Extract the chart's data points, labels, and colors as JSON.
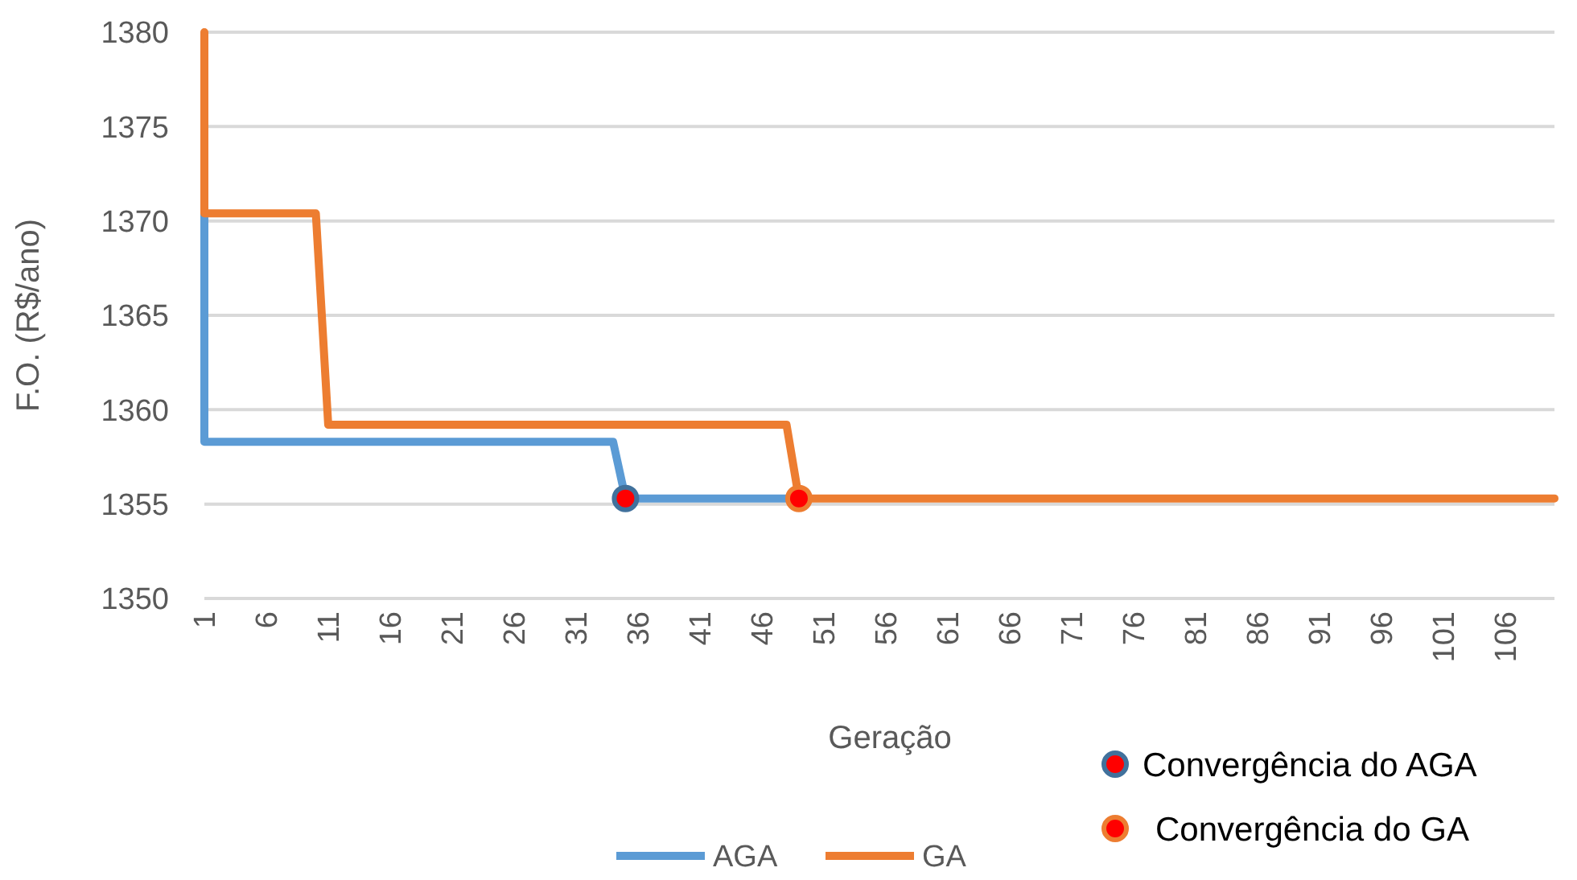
{
  "chart_data": {
    "type": "line",
    "xlabel": "Geração",
    "ylabel": "F.O. (R$/ano)",
    "xlim": [
      1,
      110
    ],
    "xticks": [
      1,
      6,
      11,
      16,
      21,
      26,
      31,
      36,
      41,
      46,
      51,
      56,
      61,
      66,
      71,
      76,
      81,
      86,
      91,
      96,
      101,
      106
    ],
    "ylim": [
      1350,
      1380
    ],
    "yticks": [
      1350,
      1355,
      1360,
      1365,
      1370,
      1375,
      1380
    ],
    "grid": "y",
    "legend": "bottom",
    "series": [
      {
        "name": "AGA",
        "color": "#5b9bd5",
        "x": [
          1,
          1,
          34,
          35,
          49
        ],
        "values": [
          1370.4,
          1358.3,
          1358.3,
          1355.3,
          1355.3
        ]
      },
      {
        "name": "GA",
        "color": "#ed7d31",
        "x": [
          1,
          1,
          10,
          11,
          48,
          49,
          110
        ],
        "values": [
          1380,
          1370.4,
          1370.4,
          1359.2,
          1359.2,
          1355.3,
          1355.3
        ]
      },
      {
        "name": "Convergência do AGA",
        "type": "scatter",
        "marker": "circle",
        "color": "#41719c",
        "colors": [
          "#ff0000"
        ],
        "x": [
          35
        ],
        "values": [
          1355.3
        ]
      },
      {
        "name": "Convergência do GA",
        "type": "scatter",
        "marker": "circle",
        "color": "#ed7d31",
        "colors": [
          "#ff0000"
        ],
        "x": [
          49
        ],
        "values": [
          1355.3
        ]
      }
    ]
  }
}
